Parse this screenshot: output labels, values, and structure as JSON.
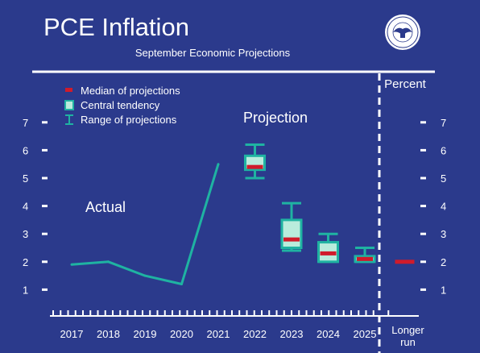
{
  "chart_data": {
    "type": "line",
    "title": "PCE Inflation",
    "subtitle": "September Economic Projections",
    "unit_label": "Percent",
    "ylim": [
      0,
      7.5
    ],
    "y_ticks": [
      "1",
      "2",
      "3",
      "4",
      "5",
      "6",
      "7"
    ],
    "categories": [
      "2017",
      "2018",
      "2019",
      "2020",
      "2021",
      "2022",
      "2023",
      "2024",
      "2025",
      "Longer run"
    ],
    "actual": {
      "name": "Actual",
      "x": [
        "2017",
        "2018",
        "2019",
        "2020",
        "2021"
      ],
      "values": [
        1.9,
        2.0,
        1.5,
        1.2,
        5.5
      ]
    },
    "projection_label": "Projection",
    "projections": [
      {
        "x": "2022",
        "range_low": 5.0,
        "range_high": 6.2,
        "central_low": 5.3,
        "central_high": 5.8,
        "median": 5.4
      },
      {
        "x": "2023",
        "range_low": 2.4,
        "range_high": 4.1,
        "central_low": 2.5,
        "central_high": 3.5,
        "median": 2.8
      },
      {
        "x": "2024",
        "range_low": 2.0,
        "range_high": 3.0,
        "central_low": 2.0,
        "central_high": 2.7,
        "median": 2.3
      },
      {
        "x": "2025",
        "range_low": 2.0,
        "range_high": 2.5,
        "central_low": 2.0,
        "central_high": 2.2,
        "median": 2.1
      },
      {
        "x": "Longer run",
        "median": 2.0
      }
    ],
    "legend": {
      "placement": "top-left",
      "items": [
        "Median of projections",
        "Central tendency",
        "Range of projections"
      ]
    },
    "colors": {
      "background": "#2b3a8c",
      "line": "#1fb3a2",
      "central": "#b9ecdc",
      "median": "#d01b2b",
      "text": "#ffffff"
    }
  }
}
